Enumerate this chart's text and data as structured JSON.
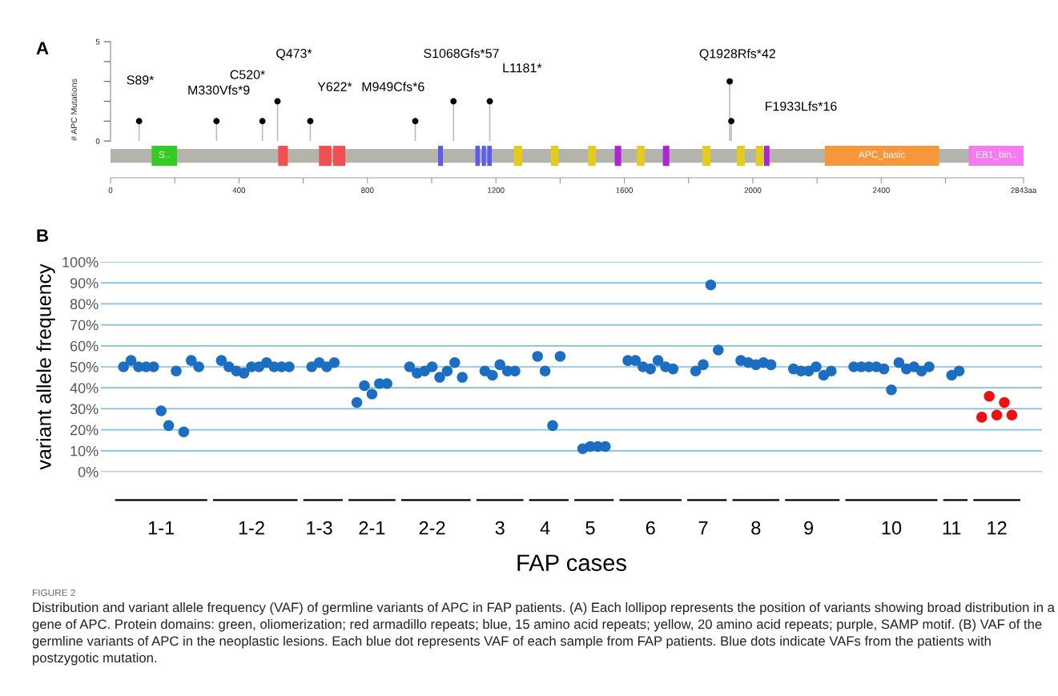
{
  "chart_data": [
    {
      "type": "lollipop",
      "title": "A",
      "ylabel": "# APC Mutations",
      "x": [
        89,
        330,
        473,
        520,
        622,
        949,
        1068,
        1181,
        1928,
        1933
      ],
      "values": [
        1,
        1,
        1,
        2,
        1,
        1,
        2,
        2,
        3,
        1
      ],
      "color": "#000000",
      "marker": "circle",
      "xlim": [
        0,
        2843
      ],
      "xticks": [
        0,
        {
          "value": 200,
          "label": null
        },
        400,
        {
          "value": 600,
          "label": null
        },
        800,
        {
          "value": 1000,
          "label": null
        },
        1200,
        {
          "value": 1400,
          "label": null
        },
        1600,
        {
          "value": 1800,
          "label": null
        },
        2000,
        {
          "value": 2200,
          "label": null
        },
        2400,
        {
          "value": 2600,
          "label": null
        },
        {
          "value": 2843,
          "label": "2843aa"
        }
      ],
      "ylim": [
        -1.85,
        5
      ],
      "yticks": [
        0,
        {
          "value": 1,
          "label": null
        },
        {
          "value": 2,
          "label": null
        },
        {
          "value": 3,
          "label": null
        },
        {
          "value": 4,
          "label": null
        },
        5
      ],
      "annotations": [
        {
          "text": "S89*",
          "x": 89,
          "y": 1
        },
        {
          "text": "M330Vfs*9",
          "x": 330,
          "y": 1
        },
        "Q473*",
        {
          "text": "C520*",
          "x": 520,
          "y": 2
        },
        {
          "text": "Y622*",
          "x": 622,
          "y": 1
        },
        {
          "text": "M949Cfs*6",
          "x": 949,
          "y": 1
        },
        "S1068Gfs*57",
        {
          "text": "L1181*",
          "x": 1181,
          "y": 2
        },
        {
          "text": "Q1928Rfs*42",
          "x": 1928,
          "y": 3
        },
        "F1933Lfs*16"
      ],
      "bands": [
        {
          "axis": "x",
          "from": 128,
          "to": 207,
          "label": "S..",
          "color": "#33cc22"
        },
        {
          "axis": "x",
          "from": 522,
          "to": 552,
          "color": "#f25050"
        },
        {
          "axis": "x",
          "from": 649,
          "to": 688,
          "color": "#f25050"
        },
        {
          "axis": "x",
          "from": 693,
          "to": 731,
          "color": "#f25050"
        },
        {
          "axis": "x",
          "from": 1020,
          "to": 1035,
          "color": "#5b5bf0"
        },
        {
          "axis": "x",
          "from": 1136,
          "to": 1150,
          "color": "#5b5bf0"
        },
        {
          "axis": "x",
          "from": 1156,
          "to": 1169,
          "color": "#5b5bf0"
        },
        {
          "axis": "x",
          "from": 1173,
          "to": 1187,
          "color": "#5b5bf0"
        },
        {
          "axis": "x",
          "from": 1256,
          "to": 1282,
          "color": "#e5cc1c"
        },
        {
          "axis": "x",
          "from": 1371,
          "to": 1395,
          "color": "#e5cc1c"
        },
        {
          "axis": "x",
          "from": 1487,
          "to": 1511,
          "color": "#e5cc1c"
        },
        {
          "axis": "x",
          "from": 1570,
          "to": 1590,
          "color": "#b024d8"
        },
        {
          "axis": "x",
          "from": 1639,
          "to": 1663,
          "color": "#e5cc1c"
        },
        {
          "axis": "x",
          "from": 1720,
          "to": 1740,
          "color": "#b024d8"
        },
        {
          "axis": "x",
          "from": 1843,
          "to": 1868,
          "color": "#e5cc1c"
        },
        {
          "axis": "x",
          "from": 1950,
          "to": 1975,
          "color": "#e5cc1c"
        },
        {
          "axis": "x",
          "from": 2009,
          "to": 2033,
          "color": "#e5cc1c"
        },
        {
          "axis": "x",
          "from": 2035,
          "to": 2052,
          "color": "#b024d8"
        },
        {
          "axis": "x",
          "from": 2224,
          "to": 2580,
          "label": "APC_basic",
          "color": "#f7973c"
        },
        {
          "axis": "x",
          "from": 2672,
          "to": 2843,
          "label": "EB1_bin..",
          "color": "#f57cf0"
        }
      ]
    },
    {
      "type": "scatter",
      "title": "B",
      "xlabel": "FAP cases",
      "ylabel": "variant allele frequency",
      "categories": [
        null,
        null,
        null,
        null,
        null,
        "1-1",
        null,
        null,
        null,
        null,
        null,
        null,
        null,
        null,
        null,
        null,
        null,
        "1-2",
        null,
        null,
        null,
        null,
        null,
        null,
        null,
        null,
        "1-3",
        null,
        null,
        null,
        null,
        null,
        null,
        "2-1",
        null,
        null,
        null,
        null,
        null,
        null,
        null,
        "2-2",
        null,
        null,
        null,
        null,
        null,
        null,
        null,
        null,
        "3",
        null,
        null,
        null,
        null,
        null,
        "4",
        null,
        null,
        null,
        null,
        null,
        "5",
        null,
        null,
        null,
        null,
        null,
        null,
        null,
        "6",
        null,
        null,
        null,
        null,
        null,
        null,
        "7",
        null,
        null,
        null,
        null,
        null,
        null,
        "8",
        null,
        null,
        null,
        null,
        null,
        null,
        "9",
        null,
        null,
        null,
        null,
        null,
        null,
        null,
        null,
        null,
        null,
        "10",
        null,
        null,
        null,
        null,
        null,
        null,
        null,
        "11",
        null,
        null,
        null,
        null,
        null,
        "12",
        null,
        null
      ],
      "series": [
        {
          "color": "#1b6ec2",
          "values": [
            50,
            53,
            50,
            50,
            50,
            29,
            22,
            48,
            19,
            53,
            50,
            null,
            null,
            53,
            50,
            48,
            47,
            50,
            50,
            52,
            50,
            50,
            50,
            null,
            null,
            50,
            52,
            50,
            52,
            null,
            null,
            33,
            41,
            37,
            42,
            42,
            null,
            null,
            50,
            47,
            48,
            50,
            45,
            48,
            52,
            45,
            null,
            null,
            48,
            46,
            51,
            48,
            48,
            null,
            null,
            55,
            48,
            22,
            55,
            null,
            null,
            11,
            12,
            12,
            12,
            null,
            null,
            53,
            53,
            50,
            49,
            53,
            50,
            49,
            null,
            null,
            48,
            51,
            89,
            58,
            null,
            null,
            53,
            52,
            51,
            52,
            51,
            null,
            null,
            49,
            48,
            48,
            50,
            46,
            48,
            null,
            null,
            50,
            50,
            50,
            50,
            49,
            39,
            52,
            49,
            50,
            48,
            50,
            null,
            null,
            46,
            48,
            null,
            null,
            null,
            null,
            null,
            null,
            null
          ]
        },
        {
          "color": "#ee1111",
          "values": [
            null,
            null,
            null,
            null,
            null,
            null,
            null,
            null,
            null,
            null,
            null,
            null,
            null,
            null,
            null,
            null,
            null,
            null,
            null,
            null,
            null,
            null,
            null,
            null,
            null,
            null,
            null,
            null,
            null,
            null,
            null,
            null,
            null,
            null,
            null,
            null,
            null,
            null,
            null,
            null,
            null,
            null,
            null,
            null,
            null,
            null,
            null,
            null,
            null,
            null,
            null,
            null,
            null,
            null,
            null,
            null,
            null,
            null,
            null,
            null,
            null,
            null,
            null,
            null,
            null,
            null,
            null,
            null,
            null,
            null,
            null,
            null,
            null,
            null,
            null,
            null,
            null,
            null,
            null,
            null,
            null,
            null,
            null,
            null,
            null,
            null,
            null,
            null,
            null,
            null,
            null,
            null,
            null,
            null,
            null,
            null,
            null,
            null,
            null,
            null,
            null,
            null,
            null,
            null,
            null,
            null,
            null,
            null,
            null,
            null,
            null,
            null,
            null,
            null,
            26,
            36,
            27,
            33,
            27
          ]
        }
      ],
      "marker": "circle",
      "grid": "y",
      "ylim": [
        0,
        100
      ],
      "yticks": [
        {
          "value": 0,
          "label": "0%"
        },
        {
          "value": 10,
          "label": "10%"
        },
        {
          "value": 20,
          "label": "20%"
        },
        {
          "value": 30,
          "label": "30%"
        },
        {
          "value": 40,
          "label": "40%"
        },
        {
          "value": 50,
          "label": "50%"
        },
        {
          "value": 60,
          "label": "60%"
        },
        {
          "value": 70,
          "label": "70%"
        },
        {
          "value": 80,
          "label": "80%"
        },
        {
          "value": 90,
          "label": "90%"
        },
        {
          "value": 100,
          "label": "100%"
        }
      ],
      "annotations": [
        "FIGURE 2",
        "Distribution and variant allele frequency (VAF) of germline variants of APC in FAP patients. (A) Each lollipop represents the position of variants showing broad distribution in a gene of APC. Protein domains: green, oliomerization; red armadillo repeats; blue, 15 amino acid repeats; yellow, 20 amino acid repeats; purple, SAMP motif. (B) VAF of the germline variants of APC in the neoplastic lesions. Each blue dot represents VAF of each sample from FAP patients. Blue dots indicate VAFs from the patients with postzygotic mutation."
      ]
    }
  ]
}
